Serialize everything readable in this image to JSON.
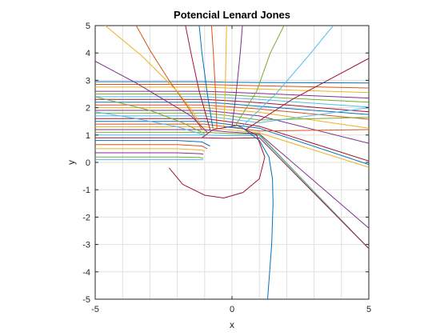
{
  "chart_data": {
    "type": "line",
    "title": "Potencial Lenard Jones",
    "xlabel": "x",
    "ylabel": "y",
    "xlim": [
      -5,
      5
    ],
    "ylim": [
      -5,
      5
    ],
    "xticks": [
      "-5",
      "0",
      "5"
    ],
    "xtick_values": [
      -5,
      0,
      5
    ],
    "yticks": [
      "-5",
      "-4",
      "-3",
      "-2",
      "-1",
      "0",
      "1",
      "2",
      "3",
      "4",
      "5"
    ],
    "ytick_values": [
      -5,
      -4,
      -3,
      -2,
      -1,
      0,
      1,
      2,
      3,
      4,
      5
    ],
    "grid": true,
    "legend": "none",
    "colors": [
      "#0072BD",
      "#D95319",
      "#EDB120",
      "#7E2F8E",
      "#77AC30",
      "#4DBEEE",
      "#A2142F"
    ],
    "series": [
      {
        "x": [
          -5,
          -2,
          -1.0,
          -0.2,
          1.0,
          5
        ],
        "y": [
          2.95,
          2.95,
          2.95,
          2.93,
          2.92,
          2.9
        ]
      },
      {
        "x": [
          -5,
          -2,
          -1.0,
          -0.2,
          1.0,
          5
        ],
        "y": [
          2.85,
          2.85,
          2.85,
          2.83,
          2.8,
          2.72
        ]
      },
      {
        "x": [
          -5,
          -2,
          -1.0,
          -0.2,
          1.0,
          5
        ],
        "y": [
          2.75,
          2.75,
          2.75,
          2.72,
          2.68,
          2.55
        ]
      },
      {
        "x": [
          -5,
          -2,
          -1.0,
          -0.2,
          1.0,
          5
        ],
        "y": [
          2.6,
          2.6,
          2.6,
          2.57,
          2.52,
          2.35
        ]
      },
      {
        "x": [
          -5,
          -2,
          -1.0,
          -0.2,
          1.0,
          5
        ],
        "y": [
          2.5,
          2.5,
          2.5,
          2.47,
          2.4,
          2.2
        ]
      },
      {
        "x": [
          -5,
          -2,
          -1.0,
          -0.2,
          1.0,
          5
        ],
        "y": [
          2.4,
          2.4,
          2.4,
          2.36,
          2.3,
          2.02
        ]
      },
      {
        "x": [
          -5,
          -2,
          -1.0,
          -0.2,
          1.0,
          5
        ],
        "y": [
          2.3,
          2.3,
          2.3,
          2.26,
          2.18,
          1.85
        ]
      },
      {
        "x": [
          -5,
          -2,
          -1.0,
          -0.2,
          1.0,
          5
        ],
        "y": [
          2.2,
          2.2,
          2.2,
          2.15,
          2.05,
          1.75
        ]
      },
      {
        "x": [
          -5,
          -2,
          -1.0,
          -0.2,
          1.0,
          5
        ],
        "y": [
          2.1,
          2.1,
          2.1,
          2.04,
          1.95,
          1.58
        ]
      },
      {
        "x": [
          -5,
          -2,
          -1.0,
          -0.2,
          1.0,
          5
        ],
        "y": [
          2.0,
          2.0,
          2.0,
          1.93,
          1.83,
          1.25
        ]
      },
      {
        "x": [
          -5,
          -2,
          -1.0,
          -0.2,
          1.0,
          5
        ],
        "y": [
          1.9,
          1.9,
          1.9,
          1.82,
          1.7,
          0.7
        ]
      },
      {
        "x": [
          -5,
          -2,
          -1.0,
          -0.2,
          1.0,
          5
        ],
        "y": [
          1.8,
          1.8,
          1.8,
          1.72,
          1.55,
          1.65
        ]
      },
      {
        "x": [
          -5,
          -2,
          -1.0,
          -0.2,
          1.0,
          5
        ],
        "y": [
          1.7,
          1.7,
          1.7,
          1.6,
          1.45,
          2.0
        ]
      },
      {
        "x": [
          -5,
          -2,
          -1.0,
          -0.2,
          1.0,
          5
        ],
        "y": [
          1.6,
          1.6,
          1.6,
          1.5,
          1.32,
          0.05
        ]
      },
      {
        "x": [
          -5,
          -2,
          -1.0,
          -0.2,
          1.0,
          5
        ],
        "y": [
          1.5,
          1.5,
          1.5,
          1.4,
          1.25,
          -0.08
        ]
      },
      {
        "x": [
          -5,
          -2,
          -1.0,
          -0.2,
          1.0,
          5
        ],
        "y": [
          1.4,
          1.4,
          1.4,
          1.3,
          1.15,
          1.2
        ]
      },
      {
        "x": [
          -5,
          -2,
          -1.0,
          -0.2,
          1.0,
          5
        ],
        "y": [
          1.3,
          1.3,
          1.3,
          1.2,
          1.08,
          -0.18
        ]
      },
      {
        "x": [
          -5,
          -2,
          -1.0,
          -0.2,
          1.0,
          5
        ],
        "y": [
          1.2,
          1.2,
          1.2,
          1.12,
          1.04,
          -2.4
        ]
      },
      {
        "x": [
          -5,
          -2,
          -1.0,
          -0.2,
          1.0,
          5
        ],
        "y": [
          1.1,
          1.1,
          1.1,
          1.06,
          1.02,
          -3.15
        ]
      },
      {
        "x": [
          -5,
          -2,
          -1.0,
          -0.2,
          1.0,
          5
        ],
        "y": [
          1.0,
          1.0,
          1.0,
          0.98,
          0.98,
          -3.15
        ]
      },
      {
        "x": [
          -5,
          -2,
          -1.0,
          -0.2,
          1.0,
          5
        ],
        "y": [
          0.9,
          0.9,
          0.9,
          0.88,
          0.9,
          -3.15
        ]
      },
      {
        "x": [
          -5,
          -2,
          -1.1,
          -0.8
        ],
        "y": [
          0.8,
          0.8,
          0.75,
          0.6
        ]
      },
      {
        "x": [
          -5,
          -2,
          -1.1,
          -0.9
        ],
        "y": [
          0.65,
          0.65,
          0.6,
          0.5
        ]
      },
      {
        "x": [
          -5,
          -2,
          -1.1,
          -1.0
        ],
        "y": [
          0.5,
          0.5,
          0.45,
          0.4
        ]
      },
      {
        "x": [
          -5,
          -2,
          -1.15,
          -1.05
        ],
        "y": [
          0.35,
          0.35,
          0.32,
          0.3
        ]
      },
      {
        "x": [
          -5,
          -2,
          -1.2,
          -1.05
        ],
        "y": [
          0.2,
          0.2,
          0.18,
          0.15
        ]
      },
      {
        "x": [
          -5,
          -2,
          -1.2,
          -1.05
        ],
        "y": [
          0.1,
          0.1,
          0.1,
          0.1
        ]
      },
      {
        "x": [
          -1.1,
          -0.7,
          0.2,
          0.9,
          1.2,
          1.0,
          0.4,
          -0.3,
          -1.0,
          -1.8,
          -2.3
        ],
        "y": [
          0.9,
          1.2,
          1.35,
          1.0,
          0.2,
          -0.6,
          -1.1,
          -1.3,
          -1.2,
          -0.8,
          -0.2
        ]
      },
      {
        "x": [
          -0.3,
          0.4,
          1.0,
          1.35,
          1.48,
          1.5,
          1.45,
          1.3
        ],
        "y": [
          1.3,
          1.25,
          0.8,
          0.2,
          -0.6,
          -1.5,
          -3.0,
          -5.0
        ]
      },
      {
        "x": [
          -1.1,
          -1.6,
          -2.3,
          -3.0,
          -3.5
        ],
        "y": [
          1.2,
          2.0,
          3.0,
          4.1,
          5.0
        ]
      },
      {
        "x": [
          -1.0,
          -1.4,
          -2.0,
          -2.6,
          -3.3,
          -5.0
        ],
        "y": [
          1.15,
          1.8,
          2.6,
          3.2,
          3.9,
          5.3
        ]
      },
      {
        "x": [
          -0.9,
          -1.5,
          -2.5,
          -3.5,
          -5.0
        ],
        "y": [
          1.1,
          1.7,
          2.3,
          2.9,
          3.7
        ]
      },
      {
        "x": [
          -1.0,
          -1.8,
          -3.0,
          -5.0
        ],
        "y": [
          1.05,
          1.45,
          1.9,
          2.4
        ]
      },
      {
        "x": [
          -1.0,
          -2.0,
          -3.5,
          -5.0
        ],
        "y": [
          1.0,
          1.3,
          1.6,
          1.85
        ]
      },
      {
        "x": [
          -0.8,
          -1.2,
          -1.5,
          -1.7
        ],
        "y": [
          1.2,
          2.6,
          4.0,
          5.0
        ]
      },
      {
        "x": [
          -0.7,
          -0.9,
          -1.1,
          -1.2
        ],
        "y": [
          1.25,
          2.5,
          4.0,
          5.0
        ]
      },
      {
        "x": [
          -0.55,
          -0.6,
          -0.68,
          -0.75
        ],
        "y": [
          1.25,
          2.5,
          4.0,
          5.0
        ]
      },
      {
        "x": [
          -0.3,
          -0.25,
          -0.22,
          -0.2
        ],
        "y": [
          1.3,
          2.5,
          4.0,
          5.0
        ]
      },
      {
        "x": [
          0.0,
          0.15,
          0.3,
          0.38
        ],
        "y": [
          1.3,
          2.5,
          4.0,
          5.0
        ]
      },
      {
        "x": [
          0.1,
          0.9,
          1.4,
          1.9
        ],
        "y": [
          1.3,
          2.6,
          4.0,
          5.0
        ]
      },
      {
        "x": [
          0.3,
          1.6,
          2.8,
          3.7
        ],
        "y": [
          1.25,
          2.5,
          3.9,
          5.0
        ]
      },
      {
        "x": [
          0.5,
          2.2,
          3.5,
          5.0
        ],
        "y": [
          1.2,
          2.3,
          3.0,
          3.8
        ]
      }
    ]
  }
}
